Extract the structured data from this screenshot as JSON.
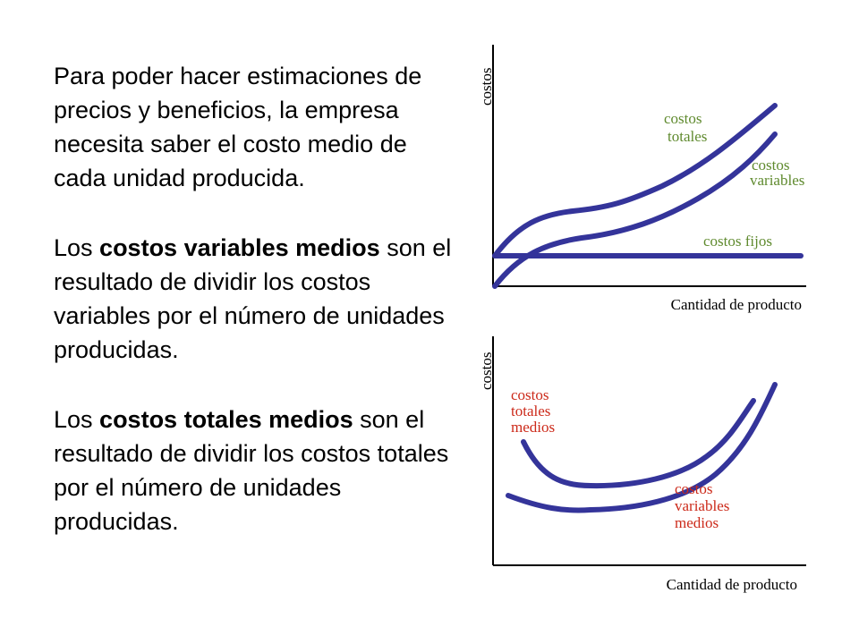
{
  "text": {
    "p1": "Para poder hacer estimaciones de precios y beneficios, la empresa necesita saber el costo medio de cada unidad producida.",
    "p2_pre": "Los ",
    "p2_bold": "costos variables medios",
    "p2_post": " son el resultado de dividir los costos variables por el número de unidades producidas.",
    "p3_pre": "Los ",
    "p3_bold": "costos totales medios",
    "p3_post": " son el resultado de dividir los costos totales por el número de unidades producidas."
  },
  "top_chart": {
    "ylabel": "costos",
    "xlabel": "Cantidad de producto",
    "ct_label_1": "costos",
    "ct_label_2": "totales",
    "cv_label_1": "costos",
    "cv_label_2": "variables",
    "cf_label": "costos fijos"
  },
  "bottom_chart": {
    "ylabel": "costos",
    "xlabel": "Cantidad de producto",
    "ctm_label_1": "costos",
    "ctm_label_2": "totales",
    "ctm_label_3": "medios",
    "cvm_label_1": "costos",
    "cvm_label_2": "variables",
    "cvm_label_3": "medios"
  },
  "colors": {
    "curve": "#34349a",
    "green_label": "#5f8a2e",
    "red_label": "#cc2a1a"
  }
}
